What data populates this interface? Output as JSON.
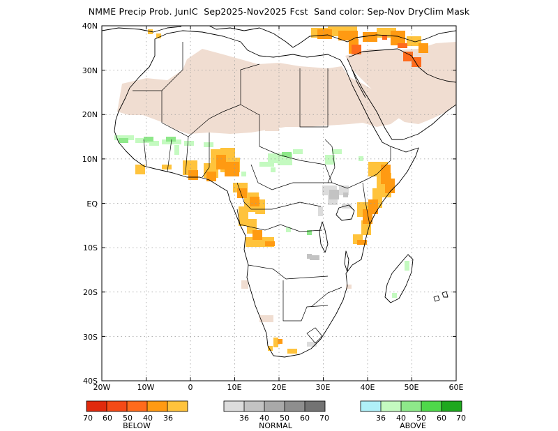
{
  "title": "NMME Precip Prob. JunIC  Sep2025-Nov2025 Fcst  Sand color: Sep-Nov DryClim Mask",
  "axes": {
    "lat_labels": [
      "40N",
      "30N",
      "20N",
      "10N",
      "EQ",
      "10S",
      "20S",
      "30S",
      "40S"
    ],
    "lon_labels": [
      "20W",
      "10W",
      "0",
      "10E",
      "20E",
      "30E",
      "40E",
      "50E",
      "60E"
    ]
  },
  "colors": {
    "sand": "#f0ddd1",
    "below": [
      "#e02a0d",
      "#f44a16",
      "#ff6b1c",
      "#ff9a12",
      "#ffc33c"
    ],
    "normal": [
      "#dcdcdc",
      "#c3c3c3",
      "#a9a9a9",
      "#8e8e8e",
      "#737373"
    ],
    "above": [
      "#b0f0f8",
      "#c4fac0",
      "#8ee88a",
      "#4fd84a",
      "#1ea81e"
    ]
  },
  "legend": {
    "below": {
      "title": "BELOW",
      "ticks": [
        "70",
        "60",
        "50",
        "40",
        "36"
      ]
    },
    "normal": {
      "title": "NORMAL",
      "ticks": [
        "36",
        "40",
        "50",
        "60",
        "70"
      ]
    },
    "above": {
      "title": "ABOVE",
      "ticks": [
        "36",
        "40",
        "50",
        "60",
        "70"
      ]
    }
  }
}
